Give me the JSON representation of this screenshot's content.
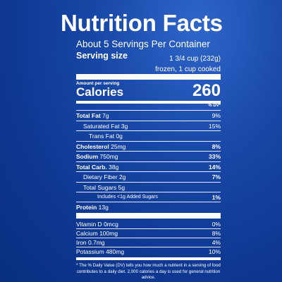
{
  "label": {
    "title": "Nutrition Facts",
    "servings_per_container": "About 5 Servings Per Container",
    "serving_size_label": "Serving size",
    "serving_size_line1": "1 3/4 cup (232g)",
    "serving_size_line2": "frozen, 1 cup cooked",
    "amount_per_serving": "Amount per serving",
    "calories_label": "Calories",
    "calories_value": "260",
    "dv_header": "% DV*",
    "nutrients": [
      {
        "name": "Total Fat",
        "amount": "7g",
        "dv": "9%"
      },
      {
        "name": "Saturated Fat",
        "amount": "3g",
        "dv": "15%"
      },
      {
        "name": "Trans Fat",
        "amount": "0g",
        "dv": ""
      },
      {
        "name": "Cholesterol",
        "amount": "25mg",
        "dv": "8%"
      },
      {
        "name": "Sodium",
        "amount": "750mg",
        "dv": "33%"
      },
      {
        "name": "Total Carb.",
        "amount": "38g",
        "dv": "14%"
      },
      {
        "name": "Dietary Fiber",
        "amount": "2g",
        "dv": "7%"
      },
      {
        "name": "Total Sugars",
        "amount": "5g",
        "dv": ""
      },
      {
        "name": "Includes <1g Added Sugars",
        "amount": "",
        "dv": "1%"
      },
      {
        "name": "Protein",
        "amount": "13g",
        "dv": ""
      }
    ],
    "vitamins": [
      {
        "name": "Vitamin D",
        "amount": "0mcg",
        "dv": "0%"
      },
      {
        "name": "Calcium",
        "amount": "100mg",
        "dv": "8%"
      },
      {
        "name": "Iron",
        "amount": "0.7mg",
        "dv": "4%"
      },
      {
        "name": "Potassium",
        "amount": "480mg",
        "dv": "10%"
      }
    ],
    "footnote": "* The % Daily Value (DV) tells you how much a nutrient in a serving of food contributes to a daily diet. 2,000 calories a day is used for general nutrition advice."
  }
}
